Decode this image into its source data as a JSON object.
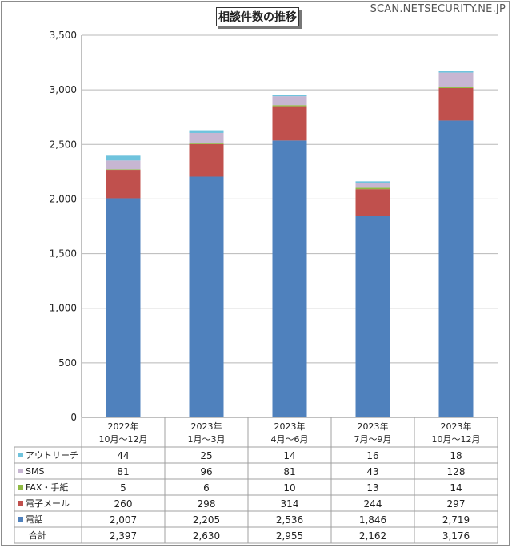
{
  "header": {
    "watermark": "SCAN.NETSECURITY.NE.JP"
  },
  "chart_data": {
    "type": "bar",
    "stacked": true,
    "title": "相談件数の推移",
    "categories": [
      [
        "2022年",
        "10月～12月"
      ],
      [
        "2023年",
        "1月～3月"
      ],
      [
        "2023年",
        "4月～6月"
      ],
      [
        "2023年",
        "7月～9月"
      ],
      [
        "2023年",
        "10月～12月"
      ]
    ],
    "ylim": [
      0,
      3500
    ],
    "yticks": [
      "0",
      "500",
      "1,000",
      "1,500",
      "2,000",
      "2,500",
      "3,000",
      "3,500"
    ],
    "ytick_values": [
      0,
      500,
      1000,
      1500,
      2000,
      2500,
      3000,
      3500
    ],
    "grid": true,
    "stack_order": [
      "電話",
      "電子メール",
      "FAX・手紙",
      "SMS",
      "アウトリーチ"
    ],
    "series": [
      {
        "name": "アウトリーチ",
        "color": "#6fc3dd",
        "values": [
          44,
          25,
          14,
          16,
          18
        ],
        "labels": [
          "44",
          "25",
          "14",
          "16",
          "18"
        ]
      },
      {
        "name": "SMS",
        "color": "#c7b6d2",
        "values": [
          81,
          96,
          81,
          43,
          128
        ],
        "labels": [
          "81",
          "96",
          "81",
          "43",
          "128"
        ]
      },
      {
        "name": "FAX・手紙",
        "color": "#8fba44",
        "values": [
          5,
          6,
          10,
          13,
          14
        ],
        "labels": [
          "5",
          "6",
          "10",
          "13",
          "14"
        ]
      },
      {
        "name": "電子メール",
        "color": "#c0504d",
        "values": [
          260,
          298,
          314,
          244,
          297
        ],
        "labels": [
          "260",
          "298",
          "314",
          "244",
          "297"
        ]
      },
      {
        "name": "電話",
        "color": "#4f81bd",
        "values": [
          2007,
          2205,
          2536,
          1846,
          2719
        ],
        "labels": [
          "2,007",
          "2,205",
          "2,536",
          "1,846",
          "2,719"
        ]
      }
    ],
    "totals": {
      "name": "合計",
      "values": [
        2397,
        2630,
        2955,
        2162,
        3176
      ],
      "labels": [
        "2,397",
        "2,630",
        "2,955",
        "2,162",
        "3,176"
      ]
    }
  }
}
